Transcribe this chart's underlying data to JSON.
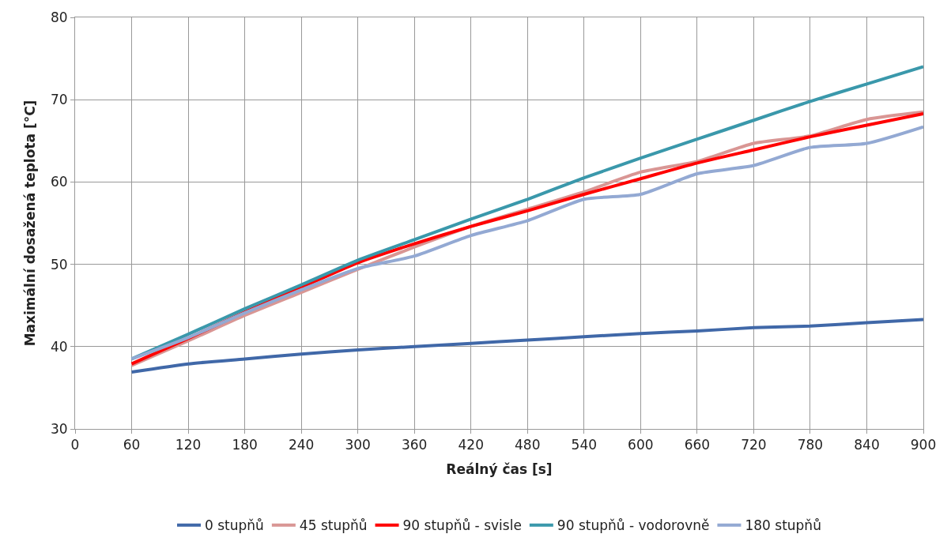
{
  "chart_data": {
    "type": "line",
    "xlabel": "Reálný čas [s]",
    "ylabel": "Maximální dosažená teplota [°C]",
    "x": [
      60,
      120,
      180,
      240,
      300,
      360,
      420,
      480,
      540,
      600,
      660,
      720,
      780,
      840,
      900
    ],
    "series": [
      {
        "name": "0 stupňů",
        "color": "#4068a8",
        "values": [
          36.9,
          37.9,
          38.5,
          39.1,
          39.6,
          40.0,
          40.4,
          40.8,
          41.2,
          41.6,
          41.9,
          42.3,
          42.5,
          42.9,
          43.3
        ]
      },
      {
        "name": "45 stupňů",
        "color": "#d99694",
        "values": [
          37.7,
          40.7,
          43.8,
          46.6,
          49.4,
          52.1,
          54.6,
          56.7,
          58.8,
          61.2,
          62.5,
          64.7,
          65.6,
          67.6,
          68.5
        ]
      },
      {
        "name": "90 stupňů - svisle",
        "color": "#ff0000",
        "values": [
          37.9,
          41.0,
          44.2,
          47.2,
          50.2,
          52.5,
          54.6,
          56.5,
          58.5,
          60.4,
          62.3,
          63.9,
          65.5,
          66.9,
          68.3
        ]
      },
      {
        "name": "90 stupňů - vodorovně",
        "color": "#3a98ab",
        "values": [
          38.5,
          41.5,
          44.6,
          47.5,
          50.5,
          53.0,
          55.5,
          57.9,
          60.5,
          62.9,
          65.2,
          67.5,
          69.8,
          71.9,
          74.0
        ]
      },
      {
        "name": "180 stupňů",
        "color": "#93a9d3",
        "values": [
          38.5,
          41.1,
          44.1,
          46.9,
          49.5,
          51.0,
          53.5,
          55.3,
          57.9,
          58.5,
          61.0,
          62.0,
          64.2,
          64.7,
          66.7
        ]
      }
    ],
    "xlim": [
      0,
      900
    ],
    "xticks": [
      0,
      60,
      120,
      180,
      240,
      300,
      360,
      420,
      480,
      540,
      600,
      660,
      720,
      780,
      840,
      900
    ],
    "ylim": [
      30,
      80
    ],
    "yticks": [
      30,
      40,
      50,
      60,
      70,
      80
    ],
    "grid": true,
    "legend": "bottom",
    "marker": "none",
    "line_style": "solid"
  }
}
